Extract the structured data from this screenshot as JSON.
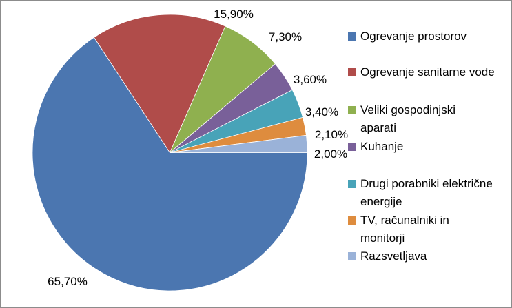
{
  "chart_data": {
    "type": "pie",
    "categories": [
      "Ogrevanje prostorov",
      "Ogrevanje sanitarne vode",
      "Veliki gospodinjski aparati",
      "Kuhanje",
      "Drugi porabniki električne energije",
      "TV, računalniki in monitorji",
      "Razsvetljava"
    ],
    "values": [
      65.7,
      15.9,
      7.3,
      3.6,
      3.4,
      2.1,
      2.0
    ],
    "labels": [
      "65,70%",
      "15,90%",
      "7,30%",
      "3,60%",
      "3,40%",
      "2,10%",
      "2,00%"
    ],
    "legend": [
      "Ogrevanje prostorov",
      "Ogrevanje sanitarne vode",
      "Veliki gospodinjski\naparati",
      "Kuhanje",
      "Drugi porabniki električne\nenergije",
      "TV, računalniki in\nmonitorji",
      "Razsvetljava"
    ],
    "colors": [
      "#4B76B0",
      "#B04C4A",
      "#8FB04F",
      "#796099",
      "#48A3B8",
      "#DE8C3E",
      "#9AB2D8"
    ],
    "start_angle_deg": 90,
    "direction": "clockwise",
    "legend_position": "right",
    "title": "",
    "slice_border_color": "#FFFFFF"
  },
  "figure": {
    "border_color": "#8C8C8C",
    "background": "#FFFFFF"
  }
}
